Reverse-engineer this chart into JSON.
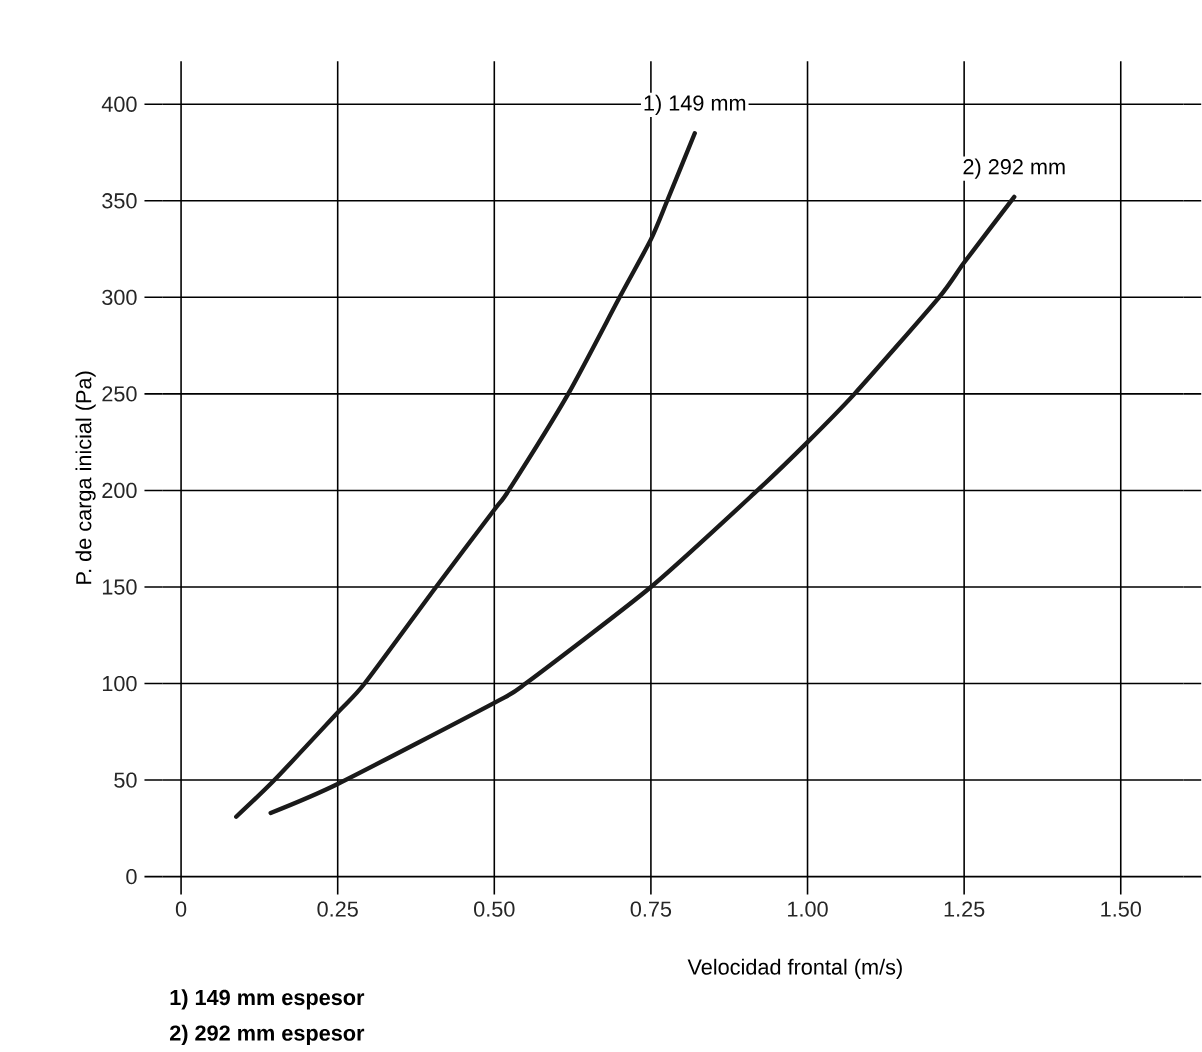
{
  "chart_data": {
    "type": "line",
    "xlabel": "Velocidad frontal (m/s)",
    "ylabel": "P. de carga inicial (Pa)",
    "series": [
      {
        "name": "1) 149 mm",
        "color": "#1a1a1a",
        "x": [
          0.088,
          0.149,
          0.25,
          0.293,
          0.407,
          0.5,
          0.523,
          0.618,
          0.7,
          0.75,
          0.776,
          0.82
        ],
        "values": [
          31,
          50,
          85,
          100,
          150,
          190,
          200,
          250,
          300,
          330,
          350,
          385
        ]
      },
      {
        "name": "2) 292 mm",
        "color": "#1a1a1a",
        "x": [
          0.143,
          0.25,
          0.5,
          0.55,
          0.75,
          0.92,
          1.0,
          1.075,
          1.21,
          1.25,
          1.33
        ],
        "values": [
          33,
          48,
          90,
          100,
          150,
          200,
          225,
          250,
          300,
          318,
          352
        ]
      }
    ],
    "xlim": [
      -0.03,
      1.6
    ],
    "ylim": [
      0,
      413
    ],
    "xticks": [
      0,
      {
        "value": 0.25,
        "label": "0.25"
      },
      {
        "value": 0.5,
        "label": "0.50"
      },
      {
        "value": 0.75,
        "label": "0.75"
      },
      {
        "value": 1.0,
        "label": "1.00"
      },
      {
        "value": 1.25,
        "label": "1.25"
      },
      {
        "value": 1.5,
        "label": "1.50"
      }
    ],
    "yticks": [
      0,
      50,
      100,
      150,
      200,
      250,
      300,
      350,
      400
    ],
    "grid": true,
    "marker": "none",
    "line_style": "solid",
    "annotations": [
      "1) 149 mm espesor",
      "2) 292 mm espesor"
    ]
  }
}
